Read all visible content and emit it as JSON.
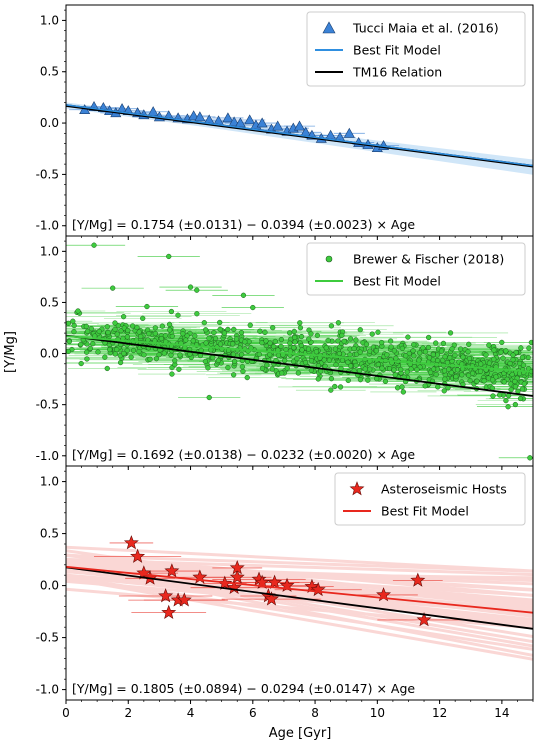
{
  "figure": {
    "ylabel": "[Y/Mg]",
    "xlabel": "Age [Gyr]",
    "colors": {
      "tucci": "#3b82d6",
      "tucci_fit": "#2f8fe0",
      "brewer": "#3ecb3e",
      "brewer_fit": "#3ecb3e",
      "hosts": "#e8281e",
      "hosts_fit": "#e8281e",
      "tm16": "#000000"
    }
  },
  "chart_data": [
    {
      "type": "scatter",
      "panel": "top",
      "xlim": [
        0,
        15
      ],
      "ylim": [
        -1.1,
        1.15
      ],
      "xticks": [
        "0",
        "2",
        "4",
        "6",
        "8",
        "10",
        "12",
        "14"
      ],
      "yticks": [
        "-1.0",
        "-0.5",
        "0.0",
        "0.5",
        "1.0"
      ],
      "legend": [
        "Tucci Maia et al. (2016)",
        "Best Fit Model",
        "TM16 Relation"
      ],
      "legend_position": "top-right",
      "equation": "[Y/Mg] = 0.1754 (±0.0131) − 0.0394 (±0.0023) × Age",
      "fit": {
        "intercept": 0.1754,
        "slope": -0.0394
      },
      "tm16": {
        "intercept": 0.1754,
        "slope": -0.0394
      },
      "series": [
        {
          "name": "Tucci Maia et al. (2016)",
          "marker": "triangle",
          "x": [
            0.6,
            0.9,
            1.2,
            1.4,
            1.6,
            1.8,
            2.0,
            2.3,
            2.5,
            2.8,
            3.0,
            3.3,
            3.6,
            3.9,
            4.1,
            4.3,
            4.6,
            4.9,
            5.2,
            5.4,
            5.6,
            5.9,
            6.1,
            6.3,
            6.6,
            6.8,
            7.1,
            7.3,
            7.5,
            7.7,
            7.9,
            8.2,
            8.5,
            8.8,
            9.1,
            9.4,
            9.7,
            10.0,
            10.2
          ],
          "y": [
            0.13,
            0.16,
            0.15,
            0.12,
            0.1,
            0.14,
            0.12,
            0.1,
            0.08,
            0.11,
            0.06,
            0.07,
            0.05,
            0.04,
            0.07,
            0.06,
            0.03,
            0.02,
            0.05,
            0.01,
            0.0,
            0.03,
            -0.02,
            0.0,
            -0.06,
            -0.03,
            -0.08,
            -0.05,
            -0.03,
            -0.09,
            -0.12,
            -0.15,
            -0.12,
            -0.14,
            -0.1,
            -0.19,
            -0.21,
            -0.24,
            -0.22
          ]
        }
      ]
    },
    {
      "type": "scatter",
      "panel": "middle",
      "xlim": [
        0,
        15
      ],
      "ylim": [
        -1.1,
        1.15
      ],
      "xticks": [
        "0",
        "2",
        "4",
        "6",
        "8",
        "10",
        "12",
        "14"
      ],
      "yticks": [
        "-1.0",
        "-0.5",
        "0.0",
        "0.5",
        "1.0"
      ],
      "legend": [
        "Brewer & Fischer (2018)",
        "Best Fit Model"
      ],
      "legend_position": "top-right",
      "equation": "[Y/Mg] = 0.1692 (±0.0138) − 0.0232 (±0.0020) × Age",
      "fit": {
        "intercept": 0.1692,
        "slope": -0.0232
      },
      "tm16": {
        "intercept": 0.1754,
        "slope": -0.0394
      },
      "series": [
        {
          "name": "Brewer & Fischer (2018)",
          "marker": "circle",
          "n_points": 900,
          "y_scatter": 0.12,
          "outliers_x": [
            0.9,
            1.5,
            3.3,
            4.0,
            5.7,
            4.2,
            2.6,
            6.0,
            4.6,
            14.2,
            14.6,
            14.9
          ],
          "outliers_y": [
            1.06,
            0.64,
            0.95,
            0.65,
            0.57,
            0.62,
            0.46,
            0.45,
            -0.43,
            -0.52,
            -0.44,
            -1.02
          ]
        }
      ]
    },
    {
      "type": "scatter",
      "panel": "bottom",
      "xlim": [
        0,
        15
      ],
      "ylim": [
        -1.1,
        1.15
      ],
      "xticks": [
        "0",
        "2",
        "4",
        "6",
        "8",
        "10",
        "12",
        "14"
      ],
      "yticks": [
        "-1.0",
        "-0.5",
        "0.0",
        "0.5",
        "1.0"
      ],
      "legend": [
        "Asteroseismic Hosts",
        "Best Fit Model"
      ],
      "legend_position": "top-right",
      "equation": "[Y/Mg] = 0.1805 (±0.0894) − 0.0294 (±0.0147) × Age",
      "fit": {
        "intercept": 0.1805,
        "slope": -0.0294
      },
      "tm16": {
        "intercept": 0.1754,
        "slope": -0.0394
      },
      "series": [
        {
          "name": "Asteroseismic Hosts",
          "marker": "star",
          "x": [
            2.1,
            2.3,
            2.5,
            2.7,
            3.2,
            3.3,
            3.4,
            3.6,
            3.8,
            4.3,
            5.1,
            5.4,
            5.5,
            5.5,
            6.2,
            6.3,
            6.5,
            6.6,
            6.7,
            7.1,
            7.9,
            8.1,
            10.2,
            11.3,
            11.5
          ],
          "y": [
            0.41,
            0.28,
            0.12,
            0.07,
            -0.1,
            -0.26,
            0.14,
            -0.14,
            -0.14,
            0.08,
            0.02,
            -0.02,
            0.08,
            0.17,
            0.06,
            0.03,
            -0.1,
            -0.13,
            0.03,
            0.0,
            -0.01,
            -0.04,
            -0.09,
            0.05,
            -0.33
          ]
        }
      ]
    }
  ]
}
